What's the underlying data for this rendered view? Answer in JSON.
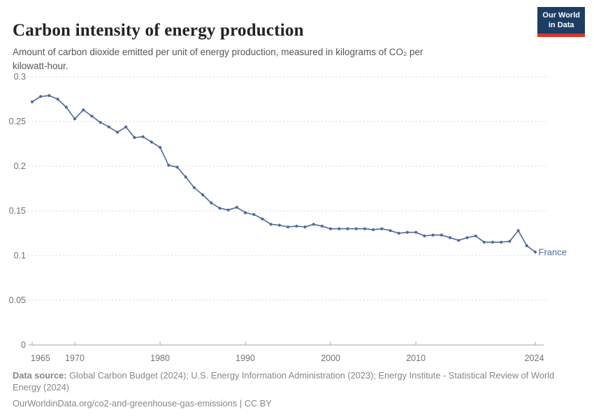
{
  "header": {
    "title": "Carbon intensity of energy production",
    "subtitle": "Amount of carbon dioxide emitted per unit of energy production, measured in kilograms of CO₂ per\nkilowatt-hour.",
    "logo_text": "Our World\nin Data",
    "logo_bg_color": "#1d3d63",
    "logo_accent_color": "#d7352c"
  },
  "chart_data": {
    "type": "line",
    "title": "Carbon intensity of energy production",
    "xlabel": "",
    "ylabel": "kilograms of CO₂ per kilowatt-hour",
    "xlim": [
      1965,
      2024
    ],
    "ylim": [
      0,
      0.3
    ],
    "grid": "horizontal dashed",
    "legend_position": "end-of-line label",
    "x": [
      1965,
      1966,
      1967,
      1968,
      1969,
      1970,
      1971,
      1972,
      1973,
      1974,
      1975,
      1976,
      1977,
      1978,
      1979,
      1980,
      1981,
      1982,
      1983,
      1984,
      1985,
      1986,
      1987,
      1988,
      1989,
      1990,
      1991,
      1992,
      1993,
      1994,
      1995,
      1996,
      1997,
      1998,
      1999,
      2000,
      2001,
      2002,
      2003,
      2004,
      2005,
      2006,
      2007,
      2008,
      2009,
      2010,
      2011,
      2012,
      2013,
      2014,
      2015,
      2016,
      2017,
      2018,
      2019,
      2020,
      2021,
      2022,
      2023,
      2024
    ],
    "series": [
      {
        "name": "France",
        "color": "#4c6a9c",
        "values": [
          0.272,
          0.278,
          0.279,
          0.275,
          0.266,
          0.253,
          0.263,
          0.256,
          0.249,
          0.244,
          0.238,
          0.244,
          0.232,
          0.233,
          0.227,
          0.221,
          0.201,
          0.199,
          0.188,
          0.176,
          0.168,
          0.159,
          0.153,
          0.151,
          0.154,
          0.148,
          0.146,
          0.141,
          0.135,
          0.134,
          0.132,
          0.133,
          0.132,
          0.135,
          0.133,
          0.13,
          0.13,
          0.13,
          0.13,
          0.13,
          0.129,
          0.13,
          0.128,
          0.125,
          0.126,
          0.126,
          0.122,
          0.123,
          0.123,
          0.12,
          0.117,
          0.12,
          0.122,
          0.115,
          0.115,
          0.115,
          0.116,
          0.128,
          0.111,
          0.104
        ]
      }
    ],
    "yticks": [
      {
        "value": 0,
        "label": "0"
      },
      {
        "value": 0.05,
        "label": "0.05"
      },
      {
        "value": 0.1,
        "label": "0.1"
      },
      {
        "value": 0.15,
        "label": "0.15"
      },
      {
        "value": 0.2,
        "label": "0.2"
      },
      {
        "value": 0.25,
        "label": "0.25"
      },
      {
        "value": 0.3,
        "label": "0.3"
      }
    ],
    "xticks": [
      {
        "value": 1965,
        "label": "1965"
      },
      {
        "value": 1970,
        "label": "1970"
      },
      {
        "value": 1980,
        "label": "1980"
      },
      {
        "value": 1990,
        "label": "1990"
      },
      {
        "value": 2000,
        "label": "2000"
      },
      {
        "value": 2010,
        "label": "2010"
      },
      {
        "value": 2024,
        "label": "2024"
      }
    ],
    "colors": {
      "gridline": "#dadada",
      "axis": "#a5a5a5",
      "tick_label": "#737373"
    }
  },
  "footer": {
    "datasource_label": "Data source:",
    "datasource_text": " Global Carbon Budget (2024); U.S. Energy Information Administration (2023); Energy Institute - Statistical Review of World\nEnergy (2024)",
    "url_line": "OurWorldinData.org/co2-and-greenhouse-gas-emissions | CC BY"
  }
}
